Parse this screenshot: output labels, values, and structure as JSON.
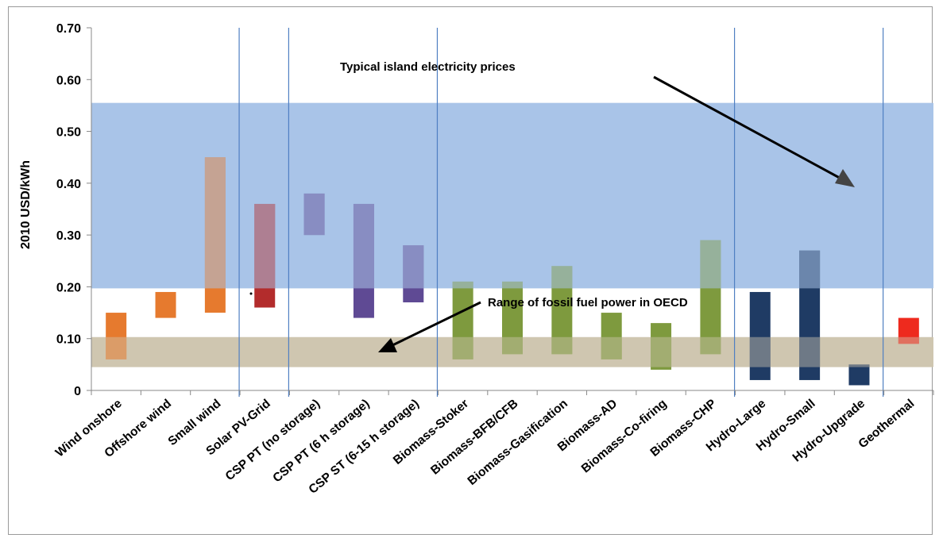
{
  "chart_data": {
    "type": "bar",
    "ylabel": "2010 USD/kWh",
    "ylim": [
      0,
      0.7
    ],
    "y_ticks": [
      "0",
      "0.10",
      "0.20",
      "0.30",
      "0.40",
      "0.50",
      "0.60",
      "0.70"
    ],
    "grid": false,
    "categories": [
      "Wind onshore",
      "Offshore wind",
      "Small wind",
      "Solar PV-Grid",
      "CSP PT (no storage)",
      "CSP PT (6 h storage)",
      "CSP ST (6-15 h storage)",
      "Biomass-Stoker",
      "Biomass-BFB/CFB",
      "Biomass-Gasification",
      "Biomass-AD",
      "Biomass-Co-firing",
      "Biomass-CHP",
      "Hydro-Large",
      "Hydro-Small",
      "Hydro-Upgrade",
      "Geothermal"
    ],
    "ranges": [
      {
        "low": 0.06,
        "high": 0.15,
        "color": "#e67a2e"
      },
      {
        "low": 0.14,
        "high": 0.19,
        "color": "#e67a2e"
      },
      {
        "low": 0.15,
        "high": 0.45,
        "color": "#e67a2e"
      },
      {
        "low": 0.16,
        "high": 0.36,
        "color": "#b32c2c"
      },
      {
        "low": 0.3,
        "high": 0.38,
        "color": "#5f4a94"
      },
      {
        "low": 0.14,
        "high": 0.36,
        "color": "#5f4a94"
      },
      {
        "low": 0.17,
        "high": 0.28,
        "color": "#5f4a94"
      },
      {
        "low": 0.06,
        "high": 0.21,
        "color": "#7e9a3e"
      },
      {
        "low": 0.07,
        "high": 0.21,
        "color": "#7e9a3e"
      },
      {
        "low": 0.07,
        "high": 0.24,
        "color": "#7e9a3e"
      },
      {
        "low": 0.06,
        "high": 0.15,
        "color": "#7e9a3e"
      },
      {
        "low": 0.04,
        "high": 0.13,
        "color": "#7e9a3e"
      },
      {
        "low": 0.07,
        "high": 0.29,
        "color": "#7e9a3e"
      },
      {
        "low": 0.02,
        "high": 0.19,
        "color": "#1f3b64"
      },
      {
        "low": 0.02,
        "high": 0.27,
        "color": "#1f3b64"
      },
      {
        "low": 0.01,
        "high": 0.05,
        "color": "#1f3b64"
      },
      {
        "low": 0.09,
        "high": 0.14,
        "color": "#ee2a1e"
      }
    ],
    "bands": [
      {
        "name": "Typical island electricity prices",
        "low": 0.197,
        "high": 0.555,
        "color": "#a9c4e8"
      },
      {
        "name": "Range of fossil fuel power in OECD",
        "low": 0.045,
        "high": 0.103,
        "color": "#cfc6b0"
      }
    ],
    "annotations": [
      "Typical island electricity prices",
      "Range of fossil fuel power in OECD"
    ]
  }
}
